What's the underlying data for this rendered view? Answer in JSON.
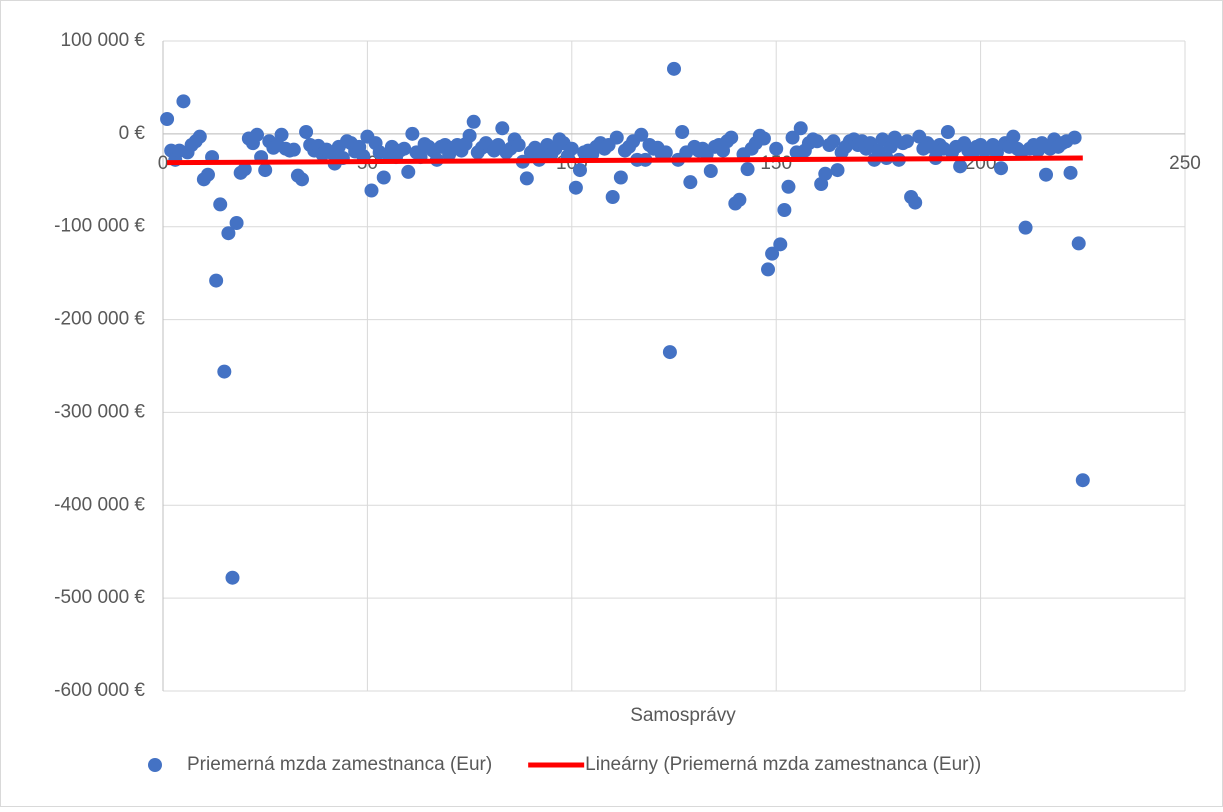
{
  "chart_data": {
    "type": "scatter",
    "xlabel": "Samosprávy",
    "xlim": [
      0,
      250
    ],
    "xticks": [
      0,
      50,
      100,
      150,
      200,
      250
    ],
    "ylim": [
      -600000,
      100000
    ],
    "yticks": [
      {
        "value": 100000,
        "label": "100 000 €"
      },
      {
        "value": 0,
        "label": "0 €"
      },
      {
        "value": -100000,
        "label": "-100 000 €"
      },
      {
        "value": -200000,
        "label": "-200 000 €"
      },
      {
        "value": -300000,
        "label": "-300 000 €"
      },
      {
        "value": -400000,
        "label": "-400 000 €"
      },
      {
        "value": -500000,
        "label": "-500 000 €"
      },
      {
        "value": -600000,
        "label": "-600 000 €"
      }
    ],
    "grid": true,
    "legend": "bottom",
    "series": [
      {
        "name": "Priemerná mzda zamestnanca (Eur)",
        "color": "#4472c4",
        "x": [
          1,
          2,
          3,
          4,
          5,
          6,
          7,
          8,
          9,
          10,
          11,
          12,
          13,
          14,
          15,
          16,
          17,
          18,
          19,
          20,
          21,
          22,
          23,
          24,
          25,
          26,
          27,
          28,
          29,
          30,
          31,
          32,
          33,
          34,
          35,
          36,
          37,
          38,
          39,
          40,
          41,
          42,
          43,
          44,
          45,
          46,
          47,
          48,
          49,
          50,
          51,
          52,
          53,
          54,
          55,
          56,
          57,
          58,
          59,
          60,
          61,
          62,
          63,
          64,
          65,
          66,
          67,
          68,
          69,
          70,
          71,
          72,
          73,
          74,
          75,
          76,
          77,
          78,
          79,
          80,
          81,
          82,
          83,
          84,
          85,
          86,
          87,
          88,
          89,
          90,
          91,
          92,
          93,
          94,
          95,
          96,
          97,
          98,
          99,
          100,
          101,
          102,
          103,
          104,
          105,
          106,
          107,
          108,
          109,
          110,
          111,
          112,
          113,
          114,
          115,
          116,
          117,
          118,
          119,
          120,
          121,
          122,
          123,
          124,
          125,
          126,
          127,
          128,
          129,
          130,
          131,
          132,
          133,
          134,
          135,
          136,
          137,
          138,
          139,
          140,
          141,
          142,
          143,
          144,
          145,
          146,
          147,
          148,
          149,
          150,
          151,
          152,
          153,
          154,
          155,
          156,
          157,
          158,
          159,
          160,
          161,
          162,
          163,
          164,
          165,
          166,
          167,
          168,
          169,
          170,
          171,
          172,
          173,
          174,
          175,
          176,
          177,
          178,
          179,
          180,
          181,
          182,
          183,
          184,
          185,
          186,
          187,
          188,
          189,
          190,
          191,
          192,
          193,
          194,
          195,
          196,
          197,
          198,
          199,
          200,
          201,
          202,
          203,
          204,
          205,
          206,
          207,
          208,
          209,
          210,
          211,
          212,
          213,
          214,
          215,
          216,
          217,
          218,
          219,
          220,
          221,
          222,
          223,
          224,
          225
        ],
        "values": [
          16000,
          -18000,
          -28000,
          -18000,
          35000,
          -20000,
          -12000,
          -8000,
          -3000,
          -49000,
          -44000,
          -25000,
          -158000,
          -76000,
          -256000,
          -107000,
          -478000,
          -96000,
          -42000,
          -38000,
          -5000,
          -10000,
          -1000,
          -25000,
          -39000,
          -8000,
          -15000,
          -12000,
          -1000,
          -16000,
          -18000,
          -17000,
          -45000,
          -49000,
          2000,
          -12000,
          -18000,
          -13000,
          -22000,
          -17000,
          -20000,
          -32000,
          -14000,
          -26000,
          -8000,
          -10000,
          -19000,
          -14000,
          -24000,
          -3000,
          -61000,
          -10000,
          -20000,
          -47000,
          -22000,
          -14000,
          -25000,
          -18000,
          -16000,
          -41000,
          0,
          -20000,
          -25000,
          -11000,
          -14000,
          -18000,
          -28000,
          -14000,
          -12000,
          -22000,
          -15000,
          -12000,
          -18000,
          -11000,
          -2000,
          13000,
          -20000,
          -15000,
          -10000,
          -14000,
          -18000,
          -12000,
          6000,
          -20000,
          -16000,
          -6000,
          -12000,
          -30000,
          -48000,
          -20000,
          -15000,
          -28000,
          -18000,
          -12000,
          -22000,
          -16000,
          -6000,
          -10000,
          -24000,
          -16000,
          -58000,
          -39000,
          -20000,
          -18000,
          -22000,
          -14000,
          -10000,
          -16000,
          -12000,
          -68000,
          -4000,
          -47000,
          -18000,
          -14000,
          -8000,
          -28000,
          -1000,
          -28000,
          -12000,
          -16000,
          -15000,
          -22000,
          -20000,
          -235000,
          70000,
          -28000,
          2000,
          -20000,
          -52000,
          -14000,
          -18000,
          -16000,
          -22000,
          -40000,
          -14000,
          -12000,
          -18000,
          -8000,
          -4000,
          -75000,
          -71000,
          -22000,
          -38000,
          -16000,
          -10000,
          -2000,
          -5000,
          -146000,
          -129000,
          -16000,
          -119000,
          -82000,
          -57000,
          -4000,
          -20000,
          6000,
          -18000,
          -10000,
          -6000,
          -8000,
          -54000,
          -43000,
          -12000,
          -8000,
          -39000,
          -20000,
          -14000,
          -8000,
          -6000,
          -12000,
          -8000,
          -16000,
          -10000,
          -28000,
          -18000,
          -6000,
          -26000,
          -14000,
          -4000,
          -28000,
          -10000,
          -8000,
          -68000,
          -74000,
          -3000,
          -16000,
          -10000,
          -14000,
          -26000,
          -12000,
          -16000,
          2000,
          -20000,
          -14000,
          -35000,
          -10000,
          -18000,
          -22000,
          -14000,
          -12000,
          -18000,
          -16000,
          -12000,
          -20000,
          -37000,
          -10000,
          -14000,
          -3000,
          -16000,
          -20000,
          -101000,
          -16000,
          -12000,
          -18000,
          -10000,
          -44000,
          -16000,
          -6000,
          -14000,
          -10000,
          -8000,
          -42000,
          -4000,
          -118000,
          -373000
        ]
      },
      {
        "name": "Lineárny (Priemerná mzda zamestnanca (Eur))",
        "color": "#ff0000",
        "type": "line",
        "x": [
          1,
          225
        ],
        "values": [
          -31000,
          -26000
        ]
      }
    ]
  }
}
